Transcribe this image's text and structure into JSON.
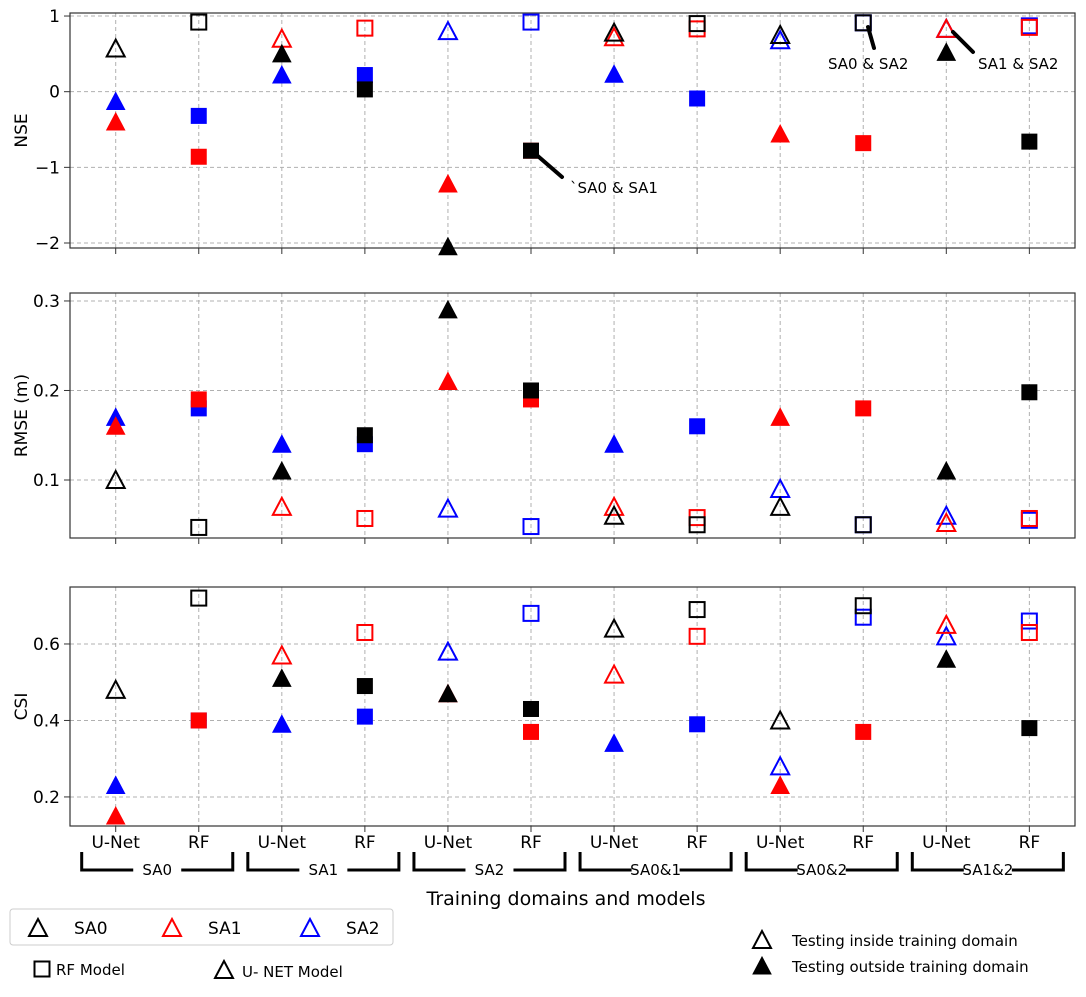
{
  "chart_data": {
    "type": "scatter",
    "xlabel": "Training domains and models",
    "categories": [
      "U-Net",
      "RF",
      "U-Net",
      "RF",
      "U-Net",
      "RF",
      "U-Net",
      "RF",
      "U-Net",
      "RF",
      "U-Net",
      "RF"
    ],
    "models": [
      "U-Net",
      "RF",
      "U-Net",
      "RF",
      "U-Net",
      "RF",
      "U-Net",
      "RF",
      "U-Net",
      "RF",
      "U-Net",
      "RF"
    ],
    "groups": [
      "SA0",
      "SA1",
      "SA2",
      "SA0&1",
      "SA0&2",
      "SA1&2"
    ],
    "series_colors": {
      "SA0": "#000000",
      "SA1": "#ff0000",
      "SA2": "#0000ff"
    },
    "panels": [
      {
        "ylabel": "NSE",
        "ylim": [
          -2.066,
          1.04
        ],
        "yticks": [
          -2,
          -1,
          0,
          1
        ],
        "ytick_labels": [
          "−2",
          "−1",
          "0",
          "1"
        ],
        "series": [
          {
            "name": "SA2",
            "values": [
              -0.13,
              -0.32,
              0.22,
              0.22,
              0.8,
              0.92,
              0.23,
              -0.09,
              0.68,
              0.91,
              0.83,
              0.87
            ],
            "inside": [
              false,
              false,
              false,
              false,
              true,
              true,
              false,
              false,
              true,
              true,
              true,
              true
            ]
          },
          {
            "name": "SA1",
            "values": [
              -0.4,
              -0.86,
              0.7,
              0.84,
              -1.22,
              -0.78,
              0.72,
              0.83,
              -0.56,
              -0.68,
              0.83,
              0.85
            ],
            "inside": [
              false,
              false,
              true,
              true,
              false,
              false,
              true,
              true,
              false,
              false,
              true,
              true
            ]
          },
          {
            "name": "SA0",
            "values": [
              0.57,
              0.92,
              0.5,
              0.03,
              -2.05,
              -0.78,
              0.78,
              0.9,
              0.75,
              0.91,
              0.52,
              -0.66
            ],
            "inside": [
              true,
              true,
              false,
              false,
              false,
              false,
              true,
              true,
              true,
              true,
              false,
              false
            ]
          }
        ],
        "annotations": [
          "`SA0 & SA1",
          "SA0 & SA2",
          "SA1 & SA2"
        ]
      },
      {
        "ylabel": "RMSE (m)",
        "ylim": [
          0.0352,
          0.3089
        ],
        "yticks": [
          0.1,
          0.2,
          0.3
        ],
        "ytick_labels": [
          "0.1",
          "0.2",
          "0.3"
        ],
        "series": [
          {
            "name": "SA2",
            "values": [
              0.17,
              0.18,
              0.14,
              0.14,
              0.068,
              0.048,
              0.14,
              0.16,
              0.09,
              0.05,
              0.06,
              0.055
            ],
            "inside": [
              false,
              false,
              false,
              false,
              true,
              true,
              false,
              false,
              true,
              true,
              true,
              true
            ]
          },
          {
            "name": "SA1",
            "values": [
              0.16,
              0.19,
              0.07,
              0.057,
              0.21,
              0.19,
              0.07,
              0.058,
              0.17,
              0.18,
              0.052,
              0.057
            ],
            "inside": [
              false,
              false,
              true,
              true,
              false,
              false,
              true,
              true,
              false,
              false,
              true,
              true
            ]
          },
          {
            "name": "SA0",
            "values": [
              0.1,
              0.047,
              0.11,
              0.15,
              0.29,
              0.2,
              0.06,
              0.05,
              0.07,
              0.05,
              0.11,
              0.198
            ],
            "inside": [
              true,
              true,
              false,
              false,
              false,
              false,
              true,
              true,
              true,
              true,
              false,
              false
            ]
          }
        ],
        "annotations": []
      },
      {
        "ylabel": "CSI",
        "ylim": [
          0.124,
          0.749
        ],
        "yticks": [
          0.2,
          0.4,
          0.6
        ],
        "ytick_labels": [
          "0.2",
          "0.4",
          "0.6"
        ],
        "series": [
          {
            "name": "SA2",
            "values": [
              0.23,
              0.4,
              0.39,
              0.41,
              0.58,
              0.68,
              0.34,
              0.39,
              0.28,
              0.67,
              0.62,
              0.66
            ],
            "inside": [
              false,
              false,
              false,
              false,
              true,
              true,
              false,
              false,
              true,
              true,
              true,
              true
            ]
          },
          {
            "name": "SA1",
            "values": [
              0.15,
              0.4,
              0.57,
              0.63,
              0.47,
              0.37,
              0.52,
              0.62,
              0.23,
              0.37,
              0.65,
              0.63
            ],
            "inside": [
              false,
              false,
              true,
              true,
              false,
              false,
              true,
              true,
              false,
              false,
              true,
              true
            ]
          },
          {
            "name": "SA0",
            "values": [
              0.48,
              0.72,
              0.51,
              0.49,
              0.47,
              0.43,
              0.64,
              0.69,
              0.4,
              0.7,
              0.56,
              0.38
            ],
            "inside": [
              true,
              true,
              false,
              false,
              false,
              false,
              true,
              true,
              true,
              true,
              false,
              false
            ]
          }
        ],
        "annotations": []
      }
    ],
    "legend": {
      "series": [
        "SA0",
        "SA1",
        "SA2"
      ],
      "models": [
        "RF Model",
        "U- NET Model"
      ],
      "testing": [
        "Testing inside training domain",
        "Testing outside training domain"
      ]
    }
  }
}
